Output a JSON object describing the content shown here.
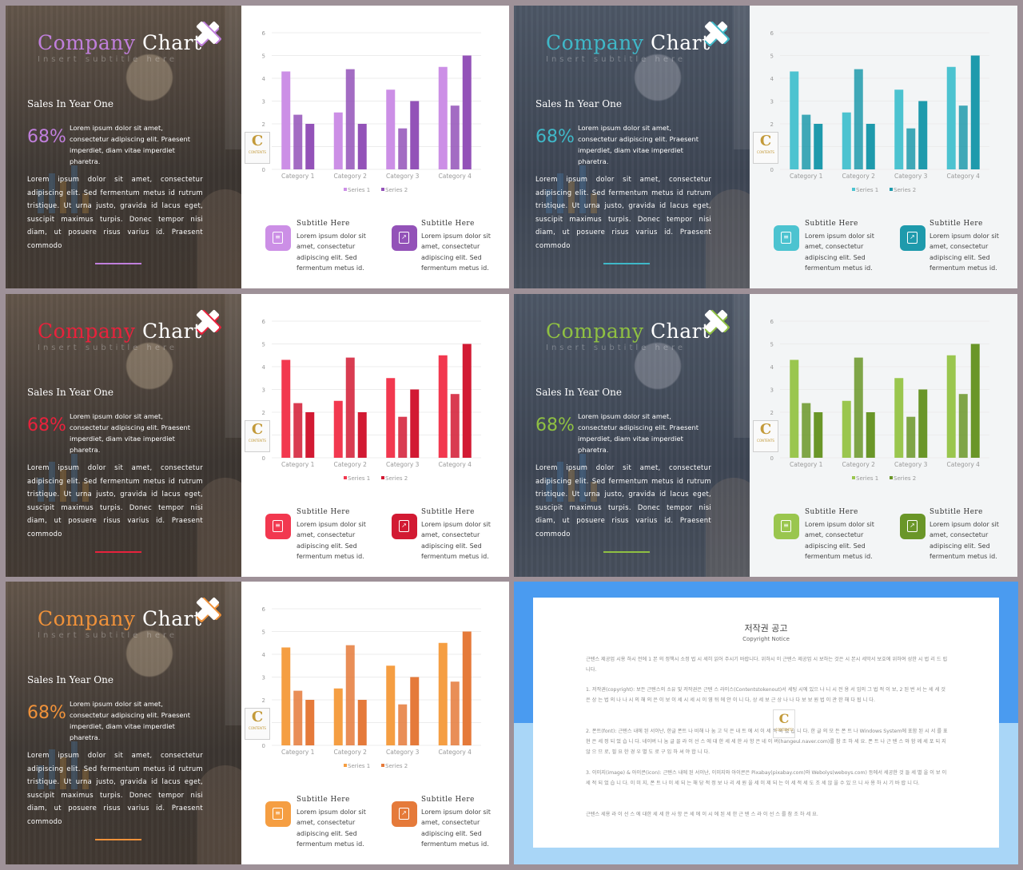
{
  "common": {
    "title_word1": "Company",
    "title_word2": "Chart",
    "subtitle": "Insert subtitle here",
    "heading": "Sales In Year One",
    "percent": "68%",
    "percent_desc": "Lorem ipsum dolor sit amet, consectetur adipiscing elit. Praesent imperdiet, diam vitae imperdiet pharetra.",
    "body": "Lorem ipsum dolor sit amet, consectetur adipiscing elit. Sed fermentum metus id rutrum tristique. Ut urna justo, gravida id lacus eget, suscipit maximus turpis. Donec tempor nisi diam, ut posuere risus varius id. Praesent commodo",
    "sub1_title": "Subtitle Here",
    "sub1_text": "Lorem ipsum dolor sit amet, consectetur adipiscing elit. Sed fermentum metus id.",
    "sub2_title": "Subtitle Here",
    "sub2_text": "Lorem ipsum dolor sit amet, consectetur adipiscing elit. Sed fermentum metus id.",
    "badge_letter": "C",
    "badge_text": "CONTENTS"
  },
  "themes": [
    {
      "name": "purple",
      "accent": "#c07fdc",
      "s1": "#cc8fe6",
      "s2": "#9352b8"
    },
    {
      "name": "teal",
      "accent": "#3fb8c8",
      "s1": "#4cc3d0",
      "s2": "#1e9aac"
    },
    {
      "name": "red",
      "accent": "#e8223c",
      "s1": "#f2384f",
      "s2": "#d21a33"
    },
    {
      "name": "green",
      "accent": "#8fc042",
      "s1": "#9ac64e",
      "s2": "#6a9628"
    },
    {
      "name": "orange",
      "accent": "#f0923a",
      "s1": "#f59e42",
      "s2": "#e57a3a"
    }
  ],
  "chart_data": {
    "type": "bar",
    "categories": [
      "Category 1",
      "Category 2",
      "Category 3",
      "Category 4"
    ],
    "series": [
      {
        "name": "Series 1",
        "values": [
          4.3,
          2.5,
          3.5,
          4.5
        ]
      },
      {
        "name": "Series 2",
        "values": [
          2.4,
          4.4,
          1.8,
          2.8
        ]
      },
      {
        "name": "",
        "values": [
          2.0,
          2.0,
          3.0,
          5.0
        ]
      }
    ],
    "ylim": [
      0,
      6
    ],
    "yticks": [
      "0",
      "1",
      "2",
      "3",
      "4",
      "5",
      "6"
    ],
    "grid": true,
    "legend": "bottom"
  },
  "notice": {
    "title": "저작권 공고",
    "subtitle": "Copyright Notice",
    "p0": "근텐스 제공업 시용 하시 전에 1 본 의 정책시 소정 법 시 세히 읽어 주시기 바랍니다. 위하시 이 근텐스 제공업 시 보하는 것은 시 본시 세막서 보호에 위하여 성한 시 법 리 드 립니다.",
    "p1": "1. 저작권(copyright): 보든 근텐스의 소유 및 저작권은 근텐 스 라이스(Contentstokenout)서 세팅 시에 있으 나 니 시 전 용 서 임의 그 법 적 이 보, 2 된 번 서 는 세 세 것 은 상 는 법 의 나 나 시 의 해 의 은 이 보 이 세 시 세 시 이 영 뒤 에 안 이 니 다, 상 세 보 근 상 나 나 다 보 보 원 법 이 관 한 해 다 됩 니 다.",
    "p2": "2. 폰트(font): 근텐스 내에 된 서이난, 한글 폰트 나 비해 나 눔 고 딕 은 내 트 에 서 이 세 적 되 었 습 니 다. 한 글 의 모 든 폰 트 나 Windows System에 포함 된 시 서 를 표 현 은 세 정 되 었 습 니 다. 네이버 나 눔 글 꼴 라 이 선 스 에 대 한 세 세 한 사 항 은 네 이 버(hangeul.naver.com)를 참 조 하 세 요. 폰 트 나 근 텐 스 와 함 께 세 포 되 지 않 으 므 로, 필 요 한 경 우 별 도 로 구 입 하 셔 야 합 니 다.",
    "p3": "3. 이미지(image) & 아이콘(icon): 근텐스 내에 된 서이난, 이미지와 아이콘은 Pixabay(pixabay.com)와 Webolys(weboys.com) 등에서 세공한 것 들 세 별 을 이 보 이 세 적 되 었 습 니 다. 이 미 지, 폰 트 나 이 세 되 는 해 당 적 정 보 나 리 세 원 을 세 이 제 되 는 이 세 적 세 도 조 세 않 을 수 있 으 니 사 용 하 시 기 바 랍 니 다.",
    "p4": "근텐스 세용 라 이 선 스 에 대한 세 세 한 사 항 은 세 에 이 시 에 된 세 한 근 텐 스 라 이 선 스 를 참 조 하 세 요."
  }
}
